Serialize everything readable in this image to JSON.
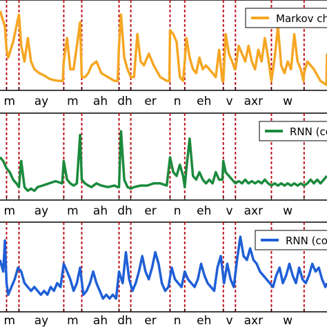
{
  "chart_data": [
    {
      "type": "line",
      "legend": {
        "label": "Markov ch",
        "position": "top-right"
      },
      "color": "#f5a623",
      "xlim": [
        0,
        100
      ],
      "segments": [
        {
          "label": "m",
          "start": 0,
          "end": 5.8
        },
        {
          "label": "ay",
          "start": 5.8,
          "end": 19.5
        },
        {
          "label": "m",
          "start": 19.5,
          "end": 25
        },
        {
          "label": "ah",
          "start": 25,
          "end": 36.4
        },
        {
          "label": "dh",
          "start": 36.4,
          "end": 40
        },
        {
          "label": "er",
          "start": 40,
          "end": 52
        },
        {
          "label": "n",
          "start": 52,
          "end": 56.5
        },
        {
          "label": "eh",
          "start": 56.5,
          "end": 68.3
        },
        {
          "label": "v",
          "start": 68.3,
          "end": 72
        },
        {
          "label": "axr",
          "start": 72,
          "end": 83
        },
        {
          "label": "w",
          "start": 83,
          "end": 93
        }
      ],
      "boundaries": [
        2,
        5.8,
        19.5,
        25,
        36.4,
        40,
        52,
        56.5,
        68.3,
        72,
        83,
        93
      ],
      "series": [
        {
          "name": "Markov ch",
          "x": [
            0,
            1.5,
            2,
            2.5,
            4,
            5.5,
            5.8,
            6.5,
            7.5,
            8.5,
            9.5,
            10.5,
            12,
            13.5,
            15,
            16.5,
            18,
            19.2,
            19.5,
            20.5,
            21.5,
            22.5,
            24.5,
            25,
            26,
            27,
            28,
            29.5,
            31,
            33,
            35,
            36,
            36.4,
            37,
            38,
            39,
            39.5,
            40,
            41,
            42,
            43,
            44,
            45.5,
            47,
            49,
            51,
            51.8,
            52,
            53,
            54,
            55,
            56,
            56.5,
            57,
            58,
            59,
            60,
            61,
            62,
            63,
            64,
            65,
            66,
            67,
            68,
            68.3,
            69,
            70,
            71,
            71.8,
            72,
            73,
            74,
            75,
            76,
            77,
            78,
            79,
            80,
            81,
            82,
            82.8,
            83,
            84,
            85,
            86,
            87,
            88,
            89,
            90,
            91,
            92,
            92.8,
            93,
            94,
            96,
            98,
            99.8,
            100
          ],
          "values": [
            0.95,
            0.75,
            0.45,
            0.35,
            0.55,
            0.85,
            0.9,
            0.5,
            0.3,
            0.6,
            0.3,
            0.2,
            0.15,
            0.12,
            0.08,
            0.06,
            0.05,
            0.05,
            0.3,
            0.6,
            0.2,
            0.2,
            0.8,
            0.1,
            0.1,
            0.15,
            0.25,
            0.3,
            0.15,
            0.1,
            0.05,
            0.05,
            0.5,
            0.9,
            0.35,
            0.2,
            0.15,
            0.1,
            0.1,
            0.65,
            0.3,
            0.25,
            0.4,
            0.25,
            0.1,
            0.05,
            0.05,
            0.7,
            0.65,
            0.55,
            0.1,
            0.05,
            0.3,
            0.6,
            0.35,
            0.2,
            0.15,
            0.35,
            0.2,
            0.25,
            0.2,
            0.15,
            0.1,
            0.45,
            0.05,
            0.05,
            0.65,
            0.4,
            0.3,
            0.2,
            0.2,
            0.5,
            0.4,
            0.3,
            0.5,
            0.3,
            0.2,
            0.45,
            0.3,
            0.6,
            0.35,
            0.1,
            0.05,
            0.35,
            0.75,
            0.25,
            0.15,
            0.3,
            0.2,
            0.65,
            0.3,
            0.2,
            0.05,
            0.15,
            0.3,
            0.2,
            0.05,
            0.0,
            0.4
          ]
        }
      ]
    },
    {
      "type": "line",
      "legend": {
        "label": "RNN (co",
        "position": "top-right"
      },
      "color": "#1a8a3c",
      "xlim": [
        0,
        100
      ],
      "segments": [
        {
          "label": "m",
          "start": 0,
          "end": 5.8
        },
        {
          "label": "ay",
          "start": 5.8,
          "end": 19.5
        },
        {
          "label": "m",
          "start": 19.5,
          "end": 25
        },
        {
          "label": "ah",
          "start": 25,
          "end": 36.4
        },
        {
          "label": "dh",
          "start": 36.4,
          "end": 40
        },
        {
          "label": "er",
          "start": 40,
          "end": 52
        },
        {
          "label": "n",
          "start": 52,
          "end": 56.5
        },
        {
          "label": "eh",
          "start": 56.5,
          "end": 68.3
        },
        {
          "label": "v",
          "start": 68.3,
          "end": 72
        },
        {
          "label": "axr",
          "start": 72,
          "end": 83
        },
        {
          "label": "w",
          "start": 83,
          "end": 93
        }
      ],
      "boundaries": [
        2,
        5.8,
        19.5,
        25,
        36.4,
        40,
        52,
        56.5,
        68.3,
        72,
        83,
        93
      ],
      "series": [
        {
          "name": "RNN (co",
          "x": [
            0,
            1,
            2,
            3,
            4,
            5,
            5.8,
            6.5,
            7.5,
            8.5,
            9.5,
            10.5,
            11.5,
            13,
            15,
            17,
            19,
            19.5,
            20.5,
            21.5,
            22.5,
            23.5,
            24.5,
            25,
            26,
            27,
            28,
            29.5,
            31,
            33,
            35,
            36,
            36.4,
            37,
            38,
            39,
            40,
            41,
            43,
            45,
            47,
            49,
            51,
            52,
            53,
            54,
            55,
            56,
            56.5,
            57,
            58,
            59,
            60,
            61,
            62,
            63,
            64,
            65,
            66,
            67,
            68,
            68.3,
            69,
            70,
            71,
            72,
            73,
            74,
            75,
            76,
            77,
            78,
            79,
            80,
            81,
            82,
            83,
            84,
            85,
            86,
            87,
            88,
            89,
            90,
            91,
            92,
            93,
            94,
            95,
            96,
            97,
            98,
            99,
            100
          ],
          "values": [
            0.5,
            0.45,
            0.35,
            0.3,
            0.2,
            0.15,
            0.1,
            0.45,
            0.1,
            0.05,
            0.08,
            0.05,
            0.1,
            0.12,
            0.15,
            0.18,
            0.15,
            0.45,
            0.2,
            0.15,
            0.12,
            0.15,
            0.8,
            0.2,
            0.15,
            0.12,
            0.1,
            0.15,
            0.12,
            0.1,
            0.12,
            0.1,
            0.1,
            0.85,
            0.2,
            0.1,
            0.08,
            0.1,
            0.12,
            0.12,
            0.15,
            0.15,
            0.12,
            0.5,
            0.3,
            0.25,
            0.4,
            0.25,
            0.1,
            0.35,
            0.75,
            0.25,
            0.2,
            0.3,
            0.2,
            0.15,
            0.2,
            0.15,
            0.3,
            0.2,
            0.2,
            0.45,
            0.3,
            0.25,
            0.2,
            0.15,
            0.18,
            0.15,
            0.2,
            0.15,
            0.18,
            0.15,
            0.18,
            0.15,
            0.2,
            0.15,
            0.12,
            0.15,
            0.12,
            0.15,
            0.12,
            0.15,
            0.12,
            0.15,
            0.12,
            0.15,
            0.12,
            0.15,
            0.2,
            0.15,
            0.2,
            0.15,
            0.2,
            0.25
          ]
        }
      ]
    },
    {
      "type": "line",
      "legend": {
        "label": "RNN (co",
        "position": "top-right"
      },
      "color": "#1f5fd6",
      "xlim": [
        0,
        100
      ],
      "segments": [
        {
          "label": "m",
          "start": 0,
          "end": 5.8
        },
        {
          "label": "ay",
          "start": 5.8,
          "end": 19.5
        },
        {
          "label": "m",
          "start": 19.5,
          "end": 25
        },
        {
          "label": "ah",
          "start": 25,
          "end": 36.4
        },
        {
          "label": "dh",
          "start": 36.4,
          "end": 40
        },
        {
          "label": "er",
          "start": 40,
          "end": 52
        },
        {
          "label": "n",
          "start": 52,
          "end": 56.5
        },
        {
          "label": "eh",
          "start": 56.5,
          "end": 68.3
        },
        {
          "label": "v",
          "start": 68.3,
          "end": 72
        },
        {
          "label": "axr",
          "start": 72,
          "end": 83
        },
        {
          "label": "w",
          "start": 83,
          "end": 93
        }
      ],
      "boundaries": [
        2,
        5.8,
        19.5,
        25,
        36.4,
        40,
        52,
        56.5,
        68.3,
        72,
        83,
        93
      ],
      "series": [
        {
          "name": "RNN (co",
          "x": [
            0,
            1,
            1.5,
            2,
            2.5,
            3.5,
            4.5,
            5.5,
            6.5,
            7.5,
            8.5,
            9.5,
            10.5,
            11.5,
            12.5,
            13.5,
            14.5,
            15.5,
            16.5,
            17.5,
            18.5,
            19.5,
            20.5,
            21.5,
            22.5,
            23.5,
            24.5,
            25.5,
            26.5,
            27.5,
            28.5,
            29.5,
            30.5,
            31.5,
            32.5,
            33.5,
            34.5,
            35.5,
            36.4,
            37.5,
            38.5,
            39.5,
            40.5,
            41.5,
            42.5,
            43.5,
            44.5,
            45.5,
            46.5,
            47.5,
            48.5,
            49.5,
            50.5,
            51.5,
            52.5,
            53.5,
            54.5,
            55.5,
            56.5,
            57.5,
            58.5,
            59.5,
            60.5,
            61.5,
            62.5,
            63.5,
            64.5,
            65.5,
            66.5,
            67.5,
            68.5,
            69.5,
            70.5,
            71.5,
            72.5,
            73.5,
            74.5,
            75.5,
            76.5,
            77.5,
            78.5,
            79.5,
            80.5,
            81.5,
            82.5,
            83.5,
            84.5,
            85.5,
            86.5,
            87.5,
            88.5,
            89.5,
            90.5,
            91.5,
            92.5,
            93.5,
            94.5,
            95.5,
            96.5,
            97.5,
            98.5,
            99.5,
            100
          ],
          "values": [
            0.6,
            0.45,
            0.85,
            0.3,
            0.15,
            0.25,
            0.35,
            0.5,
            0.45,
            0.3,
            0.25,
            0.2,
            0.25,
            0.2,
            0.15,
            0.2,
            0.15,
            0.25,
            0.2,
            0.3,
            0.25,
            0.55,
            0.45,
            0.35,
            0.2,
            0.3,
            0.5,
            0.15,
            0.2,
            0.3,
            0.45,
            0.3,
            0.2,
            0.1,
            0.15,
            0.1,
            0.15,
            0.1,
            0.45,
            0.3,
            0.7,
            0.35,
            0.2,
            0.3,
            0.45,
            0.65,
            0.45,
            0.35,
            0.5,
            0.7,
            0.55,
            0.3,
            0.2,
            0.25,
            0.5,
            0.35,
            0.3,
            0.25,
            0.45,
            0.35,
            0.3,
            0.25,
            0.35,
            0.55,
            0.4,
            0.3,
            0.25,
            0.2,
            0.5,
            0.65,
            0.3,
            0.55,
            0.35,
            0.25,
            0.6,
            0.9,
            0.65,
            0.6,
            0.75,
            0.6,
            0.55,
            0.45,
            0.4,
            0.35,
            0.3,
            0.25,
            0.4,
            0.5,
            0.3,
            0.4,
            0.55,
            0.4,
            0.3,
            0.5,
            0.35,
            0.3,
            0.4,
            0.55,
            0.45,
            0.5,
            0.35,
            0.25,
            0.3
          ]
        }
      ]
    }
  ]
}
